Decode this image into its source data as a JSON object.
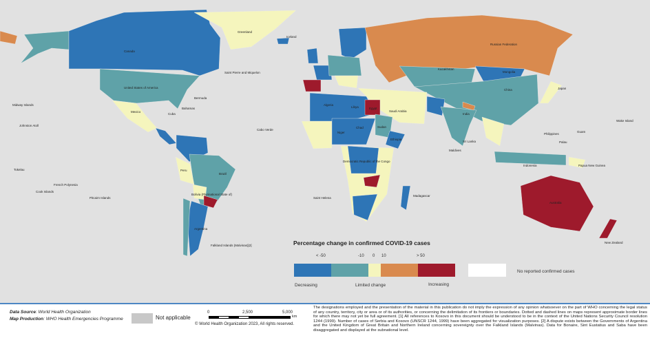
{
  "colors": {
    "ocean": "#e1e1e1",
    "decreasing_strong": "#2e75b6",
    "decreasing": "#5fa2a8",
    "limited": "#f5f5bd",
    "increasing": "#d98a4e",
    "increasing_strong": "#9e1a2c",
    "no_cases": "#ffffff",
    "not_applicable": "#c8c8c8"
  },
  "map_labels": [
    "Greenland",
    "Canada",
    "United States of America",
    "Mexico",
    "Brazil",
    "Argentina",
    "Russian Federation",
    "Kazakhstan",
    "Mongolia",
    "China",
    "India",
    "Australia",
    "Japan",
    "Iceland",
    "Saudi Arabia",
    "Sudan",
    "Algeria",
    "Libya",
    "Egypt",
    "Niger",
    "Chad",
    "Ethiopia",
    "Bolivia (Plurinational State of)",
    "Peru",
    "Democratic Republic of the Congo",
    "Madagascar",
    "Papua New Guinea",
    "New Zealand",
    "Indonesia",
    "Philippines",
    "Midway Islands",
    "Johnston Atoll",
    "French Polynesia",
    "Cook Islands",
    "Pitcairn Islands",
    "Bermuda",
    "Bahamas",
    "Cuba",
    "Saint Pierre and Miquelon",
    "Falkland Islands (Malvinas)[2]",
    "Cabo Verde",
    "Saint Helena",
    "Maldives",
    "Sri Lanka",
    "Wake Island",
    "Guam",
    "Palau",
    "Tokelau"
  ],
  "legend": {
    "title": "Percentage change in confirmed COVID-19 cases",
    "ticks": [
      "< -50",
      "-10",
      "0",
      "10",
      "> 50"
    ],
    "words": [
      "Decreasing",
      "Limited change",
      "Increasing"
    ],
    "no_cases": "No reported confirmed cases"
  },
  "footer": {
    "data_source_label": "Data Source",
    "data_source": ": World Health Organization",
    "map_production_label": "Map Production",
    "map_production": ": WHO Health Emergencies Programme",
    "not_applicable": "Not applicable",
    "scale_ticks": [
      "0",
      "2,500",
      "5,000"
    ],
    "scale_unit": "km",
    "copyright": "© World Health Organization  2023,  All rights reserved.",
    "disclaimer": "The designations employed and the presentation of the material in this publication do not imply the expression of any opinion whatsoever on the part of WHO concerning the legal status of any country, territory, city or area or of its authorities, or concerning the delimitation of its frontiers or boundaries. Dotted and dashed lines on maps represent approximate border lines for which there may not yet be full agreement. [1] All references to Kosovo in this document should be understood to be in the context of the United Nations Security Council resolution 1244 (1999). Number of cases of Serbia and Kosovo (UNSCR 1244, 1999) have been aggregated for visualization purposes. [2] A dispute exists between the Governments of Argentina and the United Kingdom of Great Britain and Northern Ireland concerning sovereignty over the Falkland Islands (Malvinas). Data for Bonaire, Sint Eustatius and Saba have been disaggregated and displayed at the subnational level."
  }
}
